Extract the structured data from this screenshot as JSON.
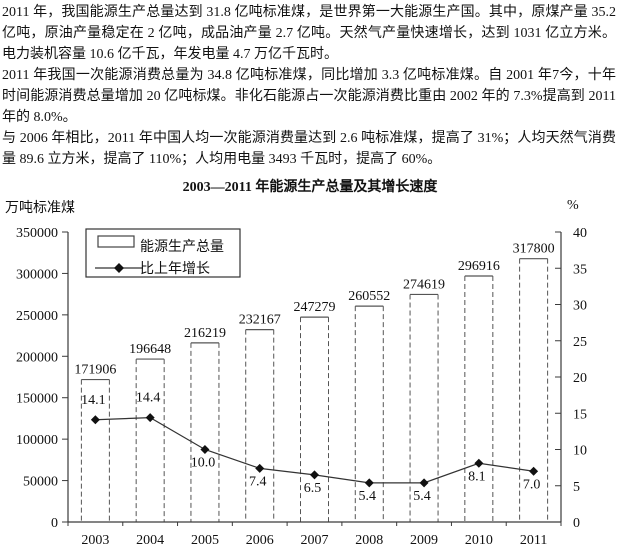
{
  "document": {
    "paragraphs": [
      "2011 年，我国能源生产总量达到 31.8 亿吨标准煤，是世界第一大能源生产国。其中，原煤产量 35.2 亿吨，原油产量稳定在 2 亿吨，成品油产量 2.7 亿吨。天然气产量快速增长，达到 1031 亿立方米。电力装机容量 10.6 亿千瓦，年发电量 4.7 万亿千瓦时。",
      "2011 年我国一次能源消费总量为 34.8 亿吨标准煤，同比增加 3.3 亿吨标准煤。自 2001 年7今，十年时间能源消费总量增加 20 亿吨标煤。非化石能源占一次能源消费比重由 2002 年的 7.3%提高到 2011 年的 8.0%。",
      "与 2006 年相比，2011 年中国人均一次能源消费量达到 2.6 吨标准煤，提高了 31%；人均天然气消费量 89.6 立方米，提高了 110%；人均用电量 3493 千瓦时，提高了 60%。"
    ]
  },
  "chart_data": {
    "type": "bar",
    "title": "2003—2011 年能源生产总量及其增长速度",
    "categories": [
      "2003",
      "2004",
      "2005",
      "2006",
      "2007",
      "2008",
      "2009",
      "2010",
      "2011"
    ],
    "series": [
      {
        "name": "能源生产总量",
        "type": "bar",
        "axis": "left",
        "values": [
          171906,
          196648,
          216219,
          232167,
          247279,
          260552,
          274619,
          296916,
          317800
        ]
      },
      {
        "name": "比上年增长",
        "type": "line",
        "axis": "right",
        "values": [
          14.1,
          14.4,
          10.0,
          7.4,
          6.5,
          5.4,
          5.4,
          8.1,
          7.0
        ]
      }
    ],
    "y_left": {
      "label": "万吨标准煤",
      "min": 0,
      "max": 350000,
      "step": 50000
    },
    "y_right": {
      "label": "%",
      "min": 0,
      "max": 40,
      "step": 5
    },
    "grid": false,
    "legend_position": "top-left-inside",
    "colors": {
      "ink": "#111111",
      "axis": "#3a3a3a",
      "bar_fill": "#ffffff",
      "bar_edge": "#555555"
    }
  }
}
